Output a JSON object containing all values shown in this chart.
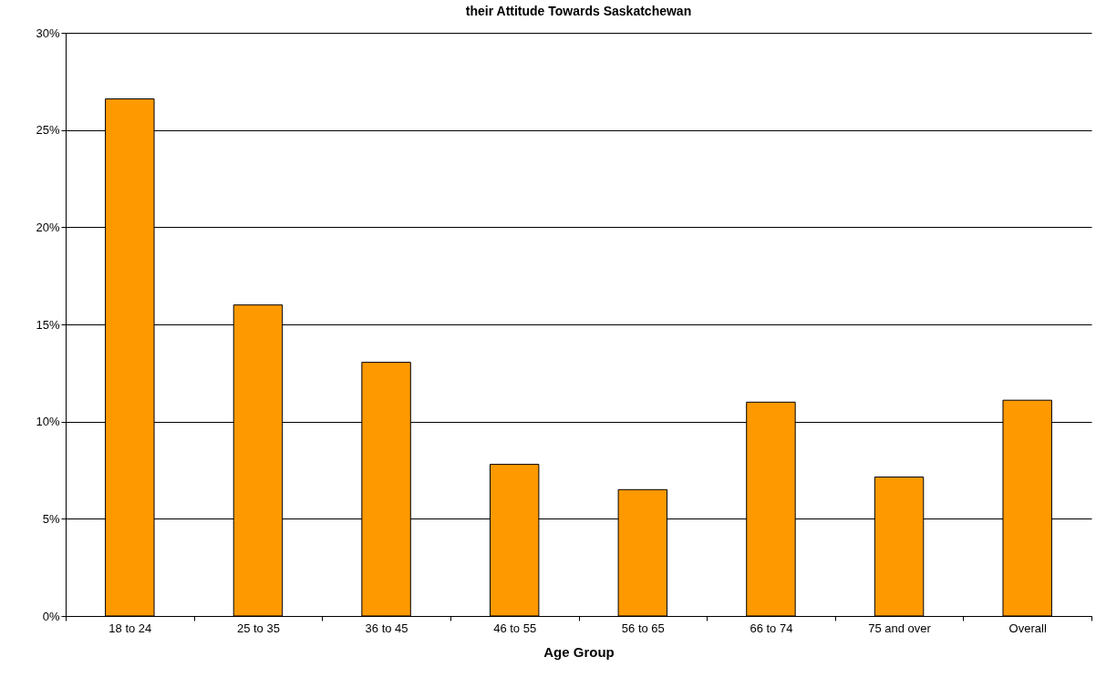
{
  "chart_data": {
    "type": "bar",
    "title": "their Attitude Towards Saskatchewan",
    "xlabel": "Age Group",
    "categories": [
      "18 to 24",
      "25 to 35",
      "36 to 45",
      "46 to 55",
      "56 to 65",
      "66 to 74",
      "75 and over",
      "Overall"
    ],
    "values": [
      0.266,
      0.16,
      0.1305,
      0.078,
      0.065,
      0.11,
      0.0715,
      0.111
    ],
    "color": "#ff9900",
    "ylim": [
      0,
      0.3
    ],
    "yticks": [
      {
        "value": 0,
        "label": "0%"
      },
      {
        "value": 0.05,
        "label": "5%"
      },
      {
        "value": 0.1,
        "label": "10%"
      },
      {
        "value": 0.15,
        "label": "15%"
      },
      {
        "value": 0.2,
        "label": "20%"
      },
      {
        "value": 0.25,
        "label": "25%"
      },
      {
        "value": 0.3,
        "label": "30%"
      }
    ],
    "grid": "y"
  }
}
